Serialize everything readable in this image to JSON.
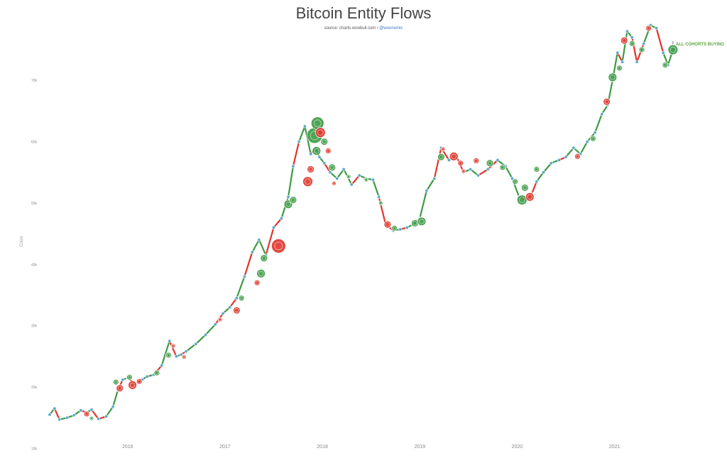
{
  "header": {
    "title": "Bitcoin Entity Flows",
    "source_prefix": "source: charts.woobull.com /",
    "source_handle": "@woonomic"
  },
  "annotation": {
    "text": "ALL COHORTS BUYING",
    "color": "#5ba53a"
  },
  "colors": {
    "buying": "#3d9a45",
    "selling": "#e0352b",
    "line": "#5aa9c9",
    "tick_text": "#888888",
    "grid": "#f2f2f2"
  },
  "chart_data": {
    "type": "scatter",
    "title": "Bitcoin Entity Flows",
    "xlabel": "",
    "ylabel": "Coins",
    "x_ticks": [
      "2016",
      "2017",
      "2018",
      "2019",
      "2020",
      "2021"
    ],
    "y_ticks": [
      "10k",
      "20k",
      "30k",
      "40k",
      "50k",
      "60k",
      "70k"
    ],
    "xlim": [
      2015.2,
      2021.98
    ],
    "ylim": [
      9000,
      75000
    ],
    "series": [
      {
        "type": "line",
        "x": [
          2015.2,
          2015.25,
          2015.3,
          2015.38,
          2015.45,
          2015.52,
          2015.58,
          2015.63,
          2015.7,
          2015.78,
          2015.85,
          2015.9,
          2015.95,
          2016.0,
          2016.08,
          2016.15,
          2016.2,
          2016.27,
          2016.35,
          2016.43,
          2016.5,
          2016.55,
          2016.6,
          2016.7,
          2016.8,
          2016.9,
          2016.98,
          2017.05,
          2017.12,
          2017.2,
          2017.28,
          2017.35,
          2017.42,
          2017.5,
          2017.58,
          2017.65,
          2017.7,
          2017.76,
          2017.82,
          2017.88,
          2017.93,
          2017.97,
          2018.02,
          2018.08,
          2018.15,
          2018.22,
          2018.3,
          2018.38,
          2018.45,
          2018.52,
          2018.58,
          2018.65,
          2018.73,
          2018.8,
          2018.87,
          2018.93,
          2019.0,
          2019.07,
          2019.15,
          2019.22,
          2019.3,
          2019.38,
          2019.45,
          2019.52,
          2019.6,
          2019.7,
          2019.8,
          2019.88,
          2019.95,
          2020.02,
          2020.1,
          2020.15,
          2020.2,
          2020.27,
          2020.35,
          2020.43,
          2020.5,
          2020.58,
          2020.65,
          2020.72,
          2020.8,
          2020.87,
          2020.93,
          2020.98,
          2021.03,
          2021.08,
          2021.13,
          2021.18,
          2021.23,
          2021.3,
          2021.37,
          2021.43,
          2021.5,
          2021.55,
          2021.6
        ],
        "y": [
          15500,
          16500,
          14700,
          15000,
          15400,
          16200,
          15800,
          16300,
          14800,
          15200,
          16800,
          19500,
          21200,
          21500,
          20500,
          21200,
          21700,
          22000,
          23500,
          27500,
          25000,
          25300,
          25800,
          27000,
          28500,
          30200,
          32000,
          33000,
          34500,
          38000,
          42000,
          44000,
          41500,
          46000,
          47500,
          51000,
          56000,
          60000,
          62500,
          58000,
          59000,
          57500,
          56500,
          55000,
          54000,
          55500,
          53000,
          54500,
          54000,
          53800,
          51000,
          46500,
          45500,
          45700,
          46000,
          46500,
          47500,
          52000,
          54000,
          59000,
          57000,
          57500,
          55000,
          55500,
          54500,
          55500,
          57000,
          56000,
          54000,
          51000,
          50500,
          51500,
          53500,
          55000,
          56500,
          57000,
          57500,
          59000,
          58000,
          60000,
          61500,
          64500,
          66000,
          70000,
          74500,
          73000,
          78000,
          77000,
          73000,
          76000,
          79000,
          78500,
          74500,
          72500,
          75000
        ],
        "seg_color": [
          "#3d9a45",
          "#e0352b",
          "#3d9a45",
          "#3d9a45",
          "#3d9a45",
          "#e0352b",
          "#3d9a45",
          "#e0352b",
          "#e0352b",
          "#3d9a45",
          "#3d9a45",
          "#e0352b",
          "#3d9a45",
          "#e0352b",
          "#e0352b",
          "#3d9a45",
          "#3d9a45",
          "#e0352b",
          "#3d9a45",
          "#e0352b",
          "#3d9a45",
          "#e0352b",
          "#3d9a45",
          "#3d9a45",
          "#3d9a45",
          "#e0352b",
          "#3d9a45",
          "#e0352b",
          "#3d9a45",
          "#e0352b",
          "#3d9a45",
          "#3d9a45",
          "#e0352b",
          "#e0352b",
          "#3d9a45",
          "#3d9a45",
          "#e0352b",
          "#3d9a45",
          "#3d9a45",
          "#e0352b",
          "#3d9a45",
          "#3d9a45",
          "#e0352b",
          "#3d9a45",
          "#3d9a45",
          "#3d9a45",
          "#e0352b",
          "#3d9a45",
          "#3d9a45",
          "#3d9a45",
          "#e0352b",
          "#e0352b",
          "#3d9a45",
          "#e0352b",
          "#3d9a45",
          "#3d9a45",
          "#3d9a45",
          "#3d9a45",
          "#e0352b",
          "#e0352b",
          "#3d9a45",
          "#e0352b",
          "#3d9a45",
          "#3d9a45",
          "#e0352b",
          "#e0352b",
          "#3d9a45",
          "#3d9a45",
          "#3d9a45",
          "#e0352b",
          "#3d9a45",
          "#e0352b",
          "#3d9a45",
          "#3d9a45",
          "#3d9a45",
          "#e0352b",
          "#3d9a45",
          "#3d9a45",
          "#3d9a45",
          "#3d9a45",
          "#3d9a45",
          "#3d9a45",
          "#3d9a45",
          "#3d9a45",
          "#e0352b",
          "#3d9a45",
          "#3d9a45",
          "#e0352b",
          "#e0352b",
          "#3d9a45",
          "#3d9a45",
          "#e0352b",
          "#3d9a45",
          "#3d9a45",
          "#3d9a45"
        ]
      },
      {
        "type": "bubbles",
        "points": [
          {
            "x": 2015.58,
            "y": 15600,
            "r": 4,
            "c": "#e0352b"
          },
          {
            "x": 2015.63,
            "y": 14900,
            "r": 3,
            "c": "#3d9a45"
          },
          {
            "x": 2015.88,
            "y": 20800,
            "r": 4,
            "c": "#3d9a45"
          },
          {
            "x": 2015.92,
            "y": 19800,
            "r": 5,
            "c": "#e0352b"
          },
          {
            "x": 2016.02,
            "y": 21600,
            "r": 4,
            "c": "#3d9a45"
          },
          {
            "x": 2016.05,
            "y": 20300,
            "r": 6,
            "c": "#e0352b"
          },
          {
            "x": 2016.12,
            "y": 20900,
            "r": 4,
            "c": "#e0352b"
          },
          {
            "x": 2016.3,
            "y": 22300,
            "r": 4,
            "c": "#3d9a45"
          },
          {
            "x": 2016.42,
            "y": 25200,
            "r": 4,
            "c": "#3d9a45"
          },
          {
            "x": 2016.47,
            "y": 26700,
            "r": 3,
            "c": "#e0352b"
          },
          {
            "x": 2016.58,
            "y": 24900,
            "r": 3,
            "c": "#e0352b"
          },
          {
            "x": 2016.95,
            "y": 31000,
            "r": 3,
            "c": "#e0352b"
          },
          {
            "x": 2017.12,
            "y": 32500,
            "r": 5,
            "c": "#e0352b"
          },
          {
            "x": 2017.17,
            "y": 34500,
            "r": 4,
            "c": "#3d9a45"
          },
          {
            "x": 2017.33,
            "y": 37000,
            "r": 4,
            "c": "#e0352b"
          },
          {
            "x": 2017.37,
            "y": 38500,
            "r": 6,
            "c": "#3d9a45"
          },
          {
            "x": 2017.4,
            "y": 41000,
            "r": 5,
            "c": "#3d9a45"
          },
          {
            "x": 2017.55,
            "y": 43000,
            "r": 10,
            "c": "#e0352b"
          },
          {
            "x": 2017.65,
            "y": 49800,
            "r": 6,
            "c": "#3d9a45"
          },
          {
            "x": 2017.7,
            "y": 50500,
            "r": 5,
            "c": "#3d9a45"
          },
          {
            "x": 2017.85,
            "y": 53500,
            "r": 7,
            "c": "#e0352b"
          },
          {
            "x": 2017.88,
            "y": 55500,
            "r": 5,
            "c": "#e0352b"
          },
          {
            "x": 2017.92,
            "y": 61000,
            "r": 11,
            "c": "#3d9a45"
          },
          {
            "x": 2017.95,
            "y": 63000,
            "r": 9,
            "c": "#3d9a45"
          },
          {
            "x": 2017.98,
            "y": 61500,
            "r": 7,
            "c": "#e0352b"
          },
          {
            "x": 2017.94,
            "y": 58500,
            "r": 6,
            "c": "#3d9a45"
          },
          {
            "x": 2018.02,
            "y": 60000,
            "r": 5,
            "c": "#3d9a45"
          },
          {
            "x": 2018.06,
            "y": 58500,
            "r": 4,
            "c": "#e0352b"
          },
          {
            "x": 2018.1,
            "y": 55800,
            "r": 5,
            "c": "#3d9a45"
          },
          {
            "x": 2018.12,
            "y": 53200,
            "r": 3,
            "c": "#e0352b"
          },
          {
            "x": 2018.27,
            "y": 54300,
            "r": 3,
            "c": "#3d9a45"
          },
          {
            "x": 2018.45,
            "y": 53800,
            "r": 3,
            "c": "#3d9a45"
          },
          {
            "x": 2018.6,
            "y": 50000,
            "r": 3,
            "c": "#3d9a45"
          },
          {
            "x": 2018.67,
            "y": 46500,
            "r": 5,
            "c": "#e0352b"
          },
          {
            "x": 2018.74,
            "y": 45900,
            "r": 4,
            "c": "#3d9a45"
          },
          {
            "x": 2018.95,
            "y": 46700,
            "r": 5,
            "c": "#3d9a45"
          },
          {
            "x": 2019.02,
            "y": 47000,
            "r": 6,
            "c": "#3d9a45"
          },
          {
            "x": 2019.22,
            "y": 57500,
            "r": 5,
            "c": "#3d9a45"
          },
          {
            "x": 2019.24,
            "y": 58800,
            "r": 3,
            "c": "#e0352b"
          },
          {
            "x": 2019.35,
            "y": 57600,
            "r": 6,
            "c": "#e0352b"
          },
          {
            "x": 2019.42,
            "y": 56500,
            "r": 4,
            "c": "#e0352b"
          },
          {
            "x": 2019.45,
            "y": 55200,
            "r": 3,
            "c": "#e0352b"
          },
          {
            "x": 2019.58,
            "y": 56900,
            "r": 4,
            "c": "#e0352b"
          },
          {
            "x": 2019.72,
            "y": 56500,
            "r": 5,
            "c": "#3d9a45"
          },
          {
            "x": 2019.85,
            "y": 55800,
            "r": 4,
            "c": "#3d9a45"
          },
          {
            "x": 2019.98,
            "y": 53500,
            "r": 4,
            "c": "#3d9a45"
          },
          {
            "x": 2020.05,
            "y": 50500,
            "r": 7,
            "c": "#3d9a45"
          },
          {
            "x": 2020.08,
            "y": 52500,
            "r": 5,
            "c": "#3d9a45"
          },
          {
            "x": 2020.13,
            "y": 51000,
            "r": 6,
            "c": "#e0352b"
          },
          {
            "x": 2020.2,
            "y": 55500,
            "r": 4,
            "c": "#3d9a45"
          },
          {
            "x": 2020.62,
            "y": 57600,
            "r": 4,
            "c": "#e0352b"
          },
          {
            "x": 2020.78,
            "y": 60500,
            "r": 4,
            "c": "#3d9a45"
          },
          {
            "x": 2020.92,
            "y": 66500,
            "r": 5,
            "c": "#e0352b"
          },
          {
            "x": 2020.98,
            "y": 70500,
            "r": 6,
            "c": "#3d9a45"
          },
          {
            "x": 2021.05,
            "y": 72000,
            "r": 4,
            "c": "#3d9a45"
          },
          {
            "x": 2021.1,
            "y": 76500,
            "r": 5,
            "c": "#e0352b"
          },
          {
            "x": 2021.18,
            "y": 76000,
            "r": 4,
            "c": "#3d9a45"
          },
          {
            "x": 2021.28,
            "y": 75000,
            "r": 4,
            "c": "#3d9a45"
          },
          {
            "x": 2021.35,
            "y": 78500,
            "r": 4,
            "c": "#e0352b"
          },
          {
            "x": 2021.52,
            "y": 72500,
            "r": 4,
            "c": "#3d9a45"
          },
          {
            "x": 2021.6,
            "y": 75000,
            "r": 7,
            "c": "#3d9a45"
          }
        ]
      }
    ],
    "annotation_point": {
      "x": 2021.6,
      "y": 75000
    },
    "grid": false
  }
}
